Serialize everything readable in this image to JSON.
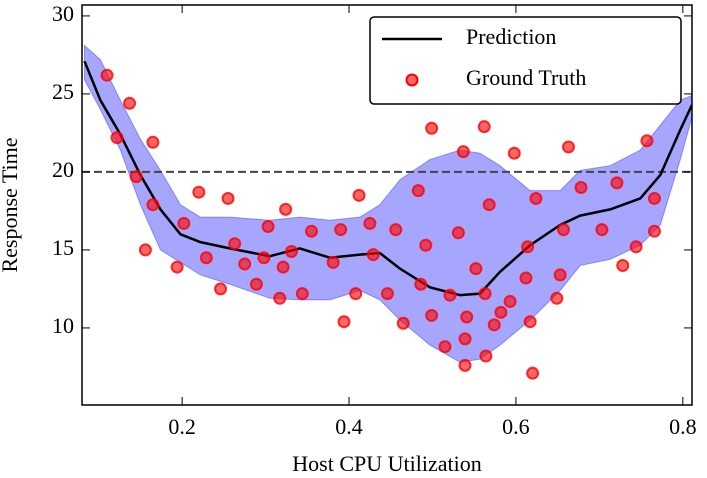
{
  "chart_data": {
    "type": "line",
    "xlabel": "Host CPU Utilization",
    "ylabel": "Response Time",
    "xlim": [
      0.08,
      0.811
    ],
    "ylim": [
      5.06,
      30.7
    ],
    "xticks": [
      0.2,
      0.4,
      0.6,
      0.8
    ],
    "yticks": [
      10,
      15,
      20,
      25,
      30
    ],
    "hline": 20,
    "legend": "upper right",
    "band": {
      "color": "#0000ff",
      "x": [
        0.083,
        0.102,
        0.126,
        0.15,
        0.174,
        0.198,
        0.222,
        0.257,
        0.305,
        0.341,
        0.377,
        0.413,
        0.437,
        0.461,
        0.497,
        0.533,
        0.557,
        0.581,
        0.617,
        0.653,
        0.677,
        0.713,
        0.749,
        0.773,
        0.797,
        0.811
      ],
      "upper": [
        28.1,
        27.2,
        24.6,
        22.1,
        20.1,
        17.9,
        17.1,
        17.1,
        16.9,
        17.1,
        16.9,
        17.1,
        17.9,
        19.5,
        20.8,
        21.4,
        21.2,
        20.4,
        18.8,
        18.8,
        20.1,
        20.4,
        21.4,
        23.0,
        24.6,
        24.9
      ],
      "lower": [
        25.9,
        24.0,
        21.4,
        17.9,
        15.0,
        14.2,
        13.4,
        12.8,
        11.9,
        11.8,
        11.8,
        12.4,
        11.8,
        10.5,
        8.9,
        7.8,
        8.0,
        8.9,
        10.5,
        12.4,
        14.0,
        14.4,
        15.3,
        16.6,
        20.8,
        23.5
      ]
    },
    "series": [
      {
        "name": "Prediction",
        "color": "#000000",
        "kind": "line",
        "x": [
          0.083,
          0.102,
          0.126,
          0.15,
          0.174,
          0.198,
          0.222,
          0.257,
          0.305,
          0.341,
          0.377,
          0.413,
          0.437,
          0.461,
          0.497,
          0.533,
          0.557,
          0.581,
          0.617,
          0.653,
          0.677,
          0.713,
          0.749,
          0.773,
          0.797,
          0.811
        ],
        "values": [
          27.1,
          24.6,
          22.4,
          19.8,
          17.6,
          16.0,
          15.5,
          15.1,
          14.6,
          15.1,
          14.5,
          14.7,
          14.8,
          13.8,
          12.6,
          12.1,
          12.2,
          13.6,
          15.3,
          16.6,
          17.2,
          17.6,
          18.3,
          19.8,
          22.7,
          24.3
        ]
      },
      {
        "name": "Ground Truth",
        "color": "#ff0000",
        "kind": "scatter",
        "x": [
          0.11,
          0.122,
          0.137,
          0.145,
          0.156,
          0.165,
          0.165,
          0.194,
          0.202,
          0.22,
          0.229,
          0.246,
          0.255,
          0.263,
          0.275,
          0.289,
          0.298,
          0.303,
          0.317,
          0.321,
          0.324,
          0.331,
          0.344,
          0.355,
          0.381,
          0.39,
          0.394,
          0.408,
          0.412,
          0.425,
          0.429,
          0.446,
          0.456,
          0.465,
          0.483,
          0.486,
          0.492,
          0.499,
          0.499,
          0.515,
          0.521,
          0.531,
          0.537,
          0.539,
          0.539,
          0.541,
          0.552,
          0.562,
          0.563,
          0.564,
          0.568,
          0.574,
          0.582,
          0.593,
          0.598,
          0.612,
          0.614,
          0.617,
          0.62,
          0.624,
          0.649,
          0.653,
          0.657,
          0.663,
          0.678,
          0.703,
          0.721,
          0.728,
          0.744,
          0.757,
          0.766,
          0.766
        ],
        "values": [
          26.2,
          22.2,
          24.4,
          19.7,
          15.0,
          21.9,
          17.9,
          13.9,
          16.7,
          18.7,
          14.5,
          12.5,
          18.3,
          15.4,
          14.1,
          12.8,
          14.5,
          16.5,
          11.9,
          13.9,
          17.6,
          14.9,
          12.2,
          16.2,
          14.2,
          16.3,
          10.4,
          12.2,
          18.5,
          16.7,
          14.7,
          12.2,
          16.3,
          10.3,
          18.8,
          12.8,
          15.3,
          22.8,
          10.8,
          8.8,
          12.1,
          16.1,
          21.3,
          9.3,
          7.6,
          10.7,
          13.8,
          22.9,
          12.2,
          8.2,
          17.9,
          10.2,
          11.0,
          11.7,
          21.2,
          13.2,
          15.2,
          10.4,
          7.1,
          18.3,
          11.9,
          13.4,
          16.3,
          21.6,
          19.0,
          16.3,
          19.3,
          14.0,
          15.2,
          22.0,
          18.3,
          16.2
        ]
      }
    ]
  }
}
